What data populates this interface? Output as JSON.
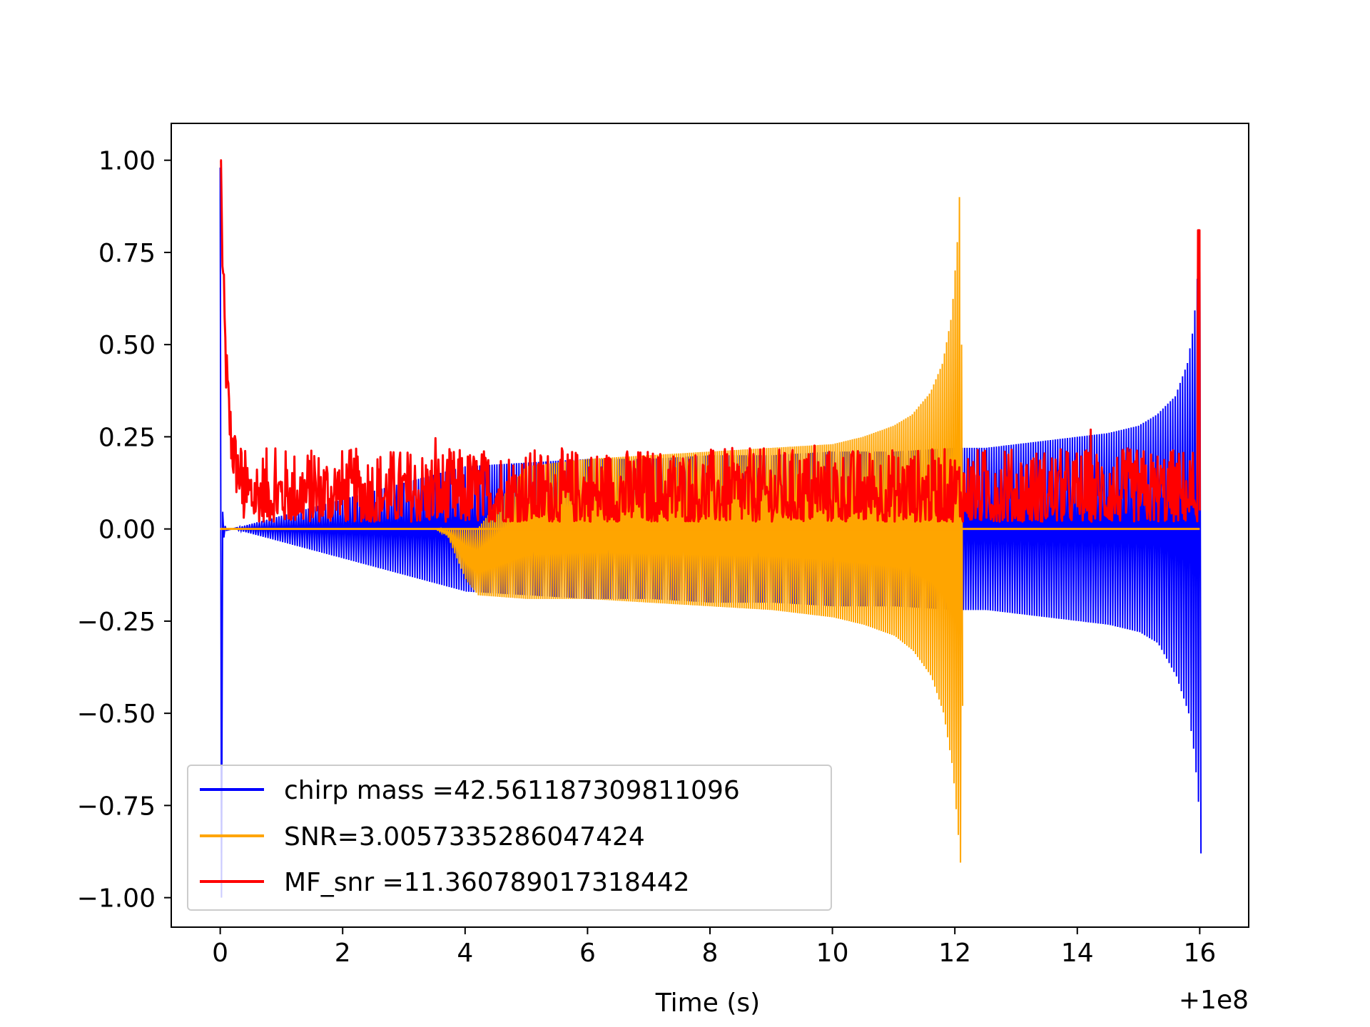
{
  "chart_data": {
    "type": "line",
    "title": "",
    "xlabel": "Time (s)",
    "ylabel": "",
    "x_offset_label": "+1e8",
    "xlim": [
      -0.8,
      16.8
    ],
    "ylim": [
      -1.08,
      1.1
    ],
    "x_ticks": [
      0,
      2,
      4,
      6,
      8,
      10,
      12,
      14,
      16
    ],
    "x_tick_labels": [
      "0",
      "2",
      "4",
      "6",
      "8",
      "10",
      "12",
      "14",
      "16"
    ],
    "y_ticks": [
      1.0,
      0.75,
      0.5,
      0.25,
      0.0,
      -0.25,
      -0.5,
      -0.75,
      -1.0
    ],
    "y_tick_labels": [
      "1.00",
      "0.75",
      "0.50",
      "0.25",
      "0.00",
      "−0.25",
      "−0.50",
      "−0.75",
      "−1.00"
    ],
    "grid": false,
    "legend_position": "lower-left",
    "series": [
      {
        "name": "chirp mass =42.561187309811096",
        "color": "#0000ff",
        "style": "oscillating chirp; amplitude envelope vs time",
        "envelope": {
          "x": [
            0.0,
            0.02,
            0.05,
            0.1,
            0.2,
            4.0,
            5.0,
            6.0,
            7.0,
            8.0,
            9.0,
            10.0,
            11.0,
            12.0,
            12.5,
            13.0,
            13.5,
            14.0,
            14.5,
            15.0,
            15.3,
            15.6,
            15.8,
            15.9,
            15.97,
            16.0
          ],
          "upper": [
            0.98,
            0.1,
            0.02,
            0.0,
            0.0,
            0.17,
            0.18,
            0.19,
            0.19,
            0.2,
            0.2,
            0.21,
            0.21,
            0.22,
            0.22,
            0.23,
            0.24,
            0.25,
            0.26,
            0.28,
            0.31,
            0.36,
            0.45,
            0.55,
            0.7,
            0.81
          ],
          "lower": [
            -1.0,
            -0.05,
            -0.01,
            0.0,
            0.0,
            -0.17,
            -0.18,
            -0.19,
            -0.19,
            -0.2,
            -0.2,
            -0.21,
            -0.21,
            -0.22,
            -0.22,
            -0.23,
            -0.24,
            -0.25,
            -0.26,
            -0.28,
            -0.31,
            -0.4,
            -0.5,
            -0.62,
            -0.76,
            -0.88
          ]
        }
      },
      {
        "name": "SNR=3.0057335286047424",
        "color": "#ffa500",
        "style": "oscillating chirp; amplitude envelope vs time",
        "envelope": {
          "x": [
            0.0,
            3.5,
            3.7,
            3.9,
            4.0,
            4.2,
            5.0,
            6.0,
            7.0,
            8.0,
            9.0,
            10.0,
            10.5,
            11.0,
            11.3,
            11.6,
            11.8,
            11.95,
            12.05,
            12.1,
            12.12,
            16.0
          ],
          "upper": [
            0.0,
            0.0,
            0.0,
            0.0,
            0.0,
            0.0,
            0.17,
            0.19,
            0.2,
            0.21,
            0.22,
            0.23,
            0.25,
            0.28,
            0.31,
            0.37,
            0.45,
            0.58,
            0.8,
            1.0,
            0.0,
            0.0
          ],
          "lower": [
            0.0,
            0.0,
            -0.02,
            -0.1,
            -0.14,
            -0.18,
            -0.19,
            -0.19,
            -0.2,
            -0.21,
            -0.22,
            -0.24,
            -0.26,
            -0.29,
            -0.33,
            -0.4,
            -0.5,
            -0.65,
            -0.85,
            -0.96,
            0.0,
            0.0
          ]
        }
      },
      {
        "name": "MF_snr =11.360789017318442",
        "color": "#ff0000",
        "style": "noisy positive matched-filter output",
        "peaks": [
          {
            "x": 0.0,
            "y": 1.0
          },
          {
            "x": 16.0,
            "y": 0.81
          }
        ],
        "baseline_range": [
          0.0,
          0.3
        ],
        "typical_level": 0.1
      }
    ]
  }
}
